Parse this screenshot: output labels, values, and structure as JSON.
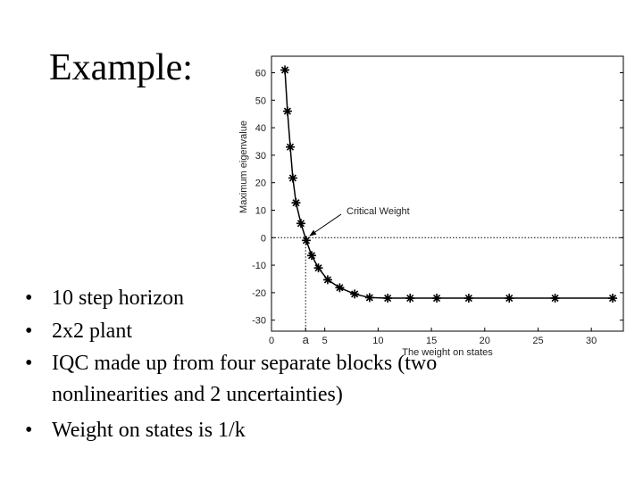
{
  "slide": {
    "title": "Example:",
    "bullets": [
      "10 step horizon",
      "2x2 plant",
      "IQC made up from four separate blocks (two nonlinearities and 2 uncertainties)",
      "Weight on states is 1/k"
    ]
  },
  "chart_data": {
    "type": "line",
    "x_label": "The weight on states",
    "y_label": "Maximum eigenvalue",
    "x": [
      1.26,
      1.5,
      1.76,
      2.0,
      2.3,
      2.76,
      3.26,
      3.77,
      4.4,
      5.27,
      6.4,
      7.8,
      9.2,
      10.9,
      13,
      15.5,
      18.5,
      22.3,
      26.6,
      32
    ],
    "values": [
      61,
      46,
      33,
      21.7,
      12.7,
      5.2,
      -1,
      -6.5,
      -11,
      -15.3,
      -18.2,
      -20.5,
      -21.8,
      -22,
      -22,
      -22,
      -22,
      -22,
      -22,
      -22
    ],
    "color": "#000000",
    "marker": "asterisk",
    "xlim": [
      0,
      33
    ],
    "ylim": [
      -34,
      66
    ],
    "xticks": [
      0,
      {
        "value": 3.2,
        "label": "a"
      },
      5,
      10,
      15,
      20,
      25,
      30
    ],
    "yticks": [
      -30,
      -20,
      -10,
      0,
      10,
      20,
      30,
      40,
      50,
      60
    ],
    "grid": false,
    "annotations": [
      {
        "text": "Critical Weight"
      }
    ]
  }
}
